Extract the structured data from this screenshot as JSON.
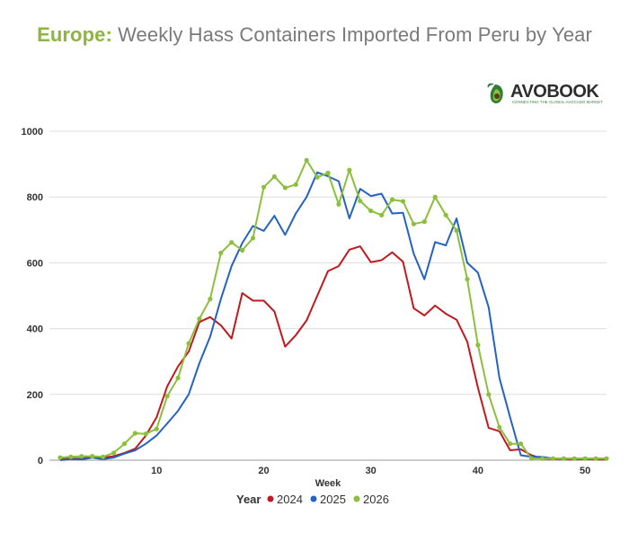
{
  "title": {
    "lead": "Europe:",
    "rest": "Weekly Hass Containers Imported From Peru by Year"
  },
  "logo": {
    "name": "AVOBOOK",
    "tagline": "CONNECTING THE GLOBAL AVOCADO MARKET"
  },
  "chart_data": {
    "type": "line",
    "title": "Europe: Weekly Hass Containers Imported From Peru by Year",
    "xlabel": "Week",
    "ylabel": "",
    "xlim": [
      0,
      52
    ],
    "ylim": [
      0,
      1000
    ],
    "xticks": [
      10,
      20,
      30,
      40,
      50
    ],
    "yticks": [
      0,
      200,
      400,
      600,
      800,
      1000
    ],
    "grid": "horizontal",
    "legend_title": "Year",
    "legend_position": "bottom",
    "series": [
      {
        "name": "2024",
        "color": "#c0191f",
        "markers": false,
        "x": [
          1,
          2,
          3,
          4,
          5,
          6,
          7,
          8,
          9,
          10,
          11,
          12,
          13,
          14,
          15,
          16,
          17,
          18,
          19,
          20,
          21,
          22,
          23,
          24,
          25,
          26,
          27,
          28,
          29,
          30,
          31,
          32,
          33,
          34,
          35,
          36,
          37,
          38,
          39,
          40,
          41,
          42,
          43,
          44,
          45,
          46,
          47,
          48,
          49,
          50,
          51,
          52
        ],
        "values": [
          3,
          5,
          5,
          10,
          8,
          12,
          22,
          35,
          75,
          130,
          225,
          285,
          330,
          420,
          435,
          410,
          370,
          508,
          485,
          485,
          452,
          345,
          380,
          425,
          500,
          575,
          590,
          640,
          650,
          602,
          608,
          632,
          603,
          462,
          440,
          470,
          445,
          427,
          360,
          220,
          98,
          88,
          30,
          33,
          15,
          5,
          3,
          3,
          2,
          3,
          2,
          2
        ]
      },
      {
        "name": "2025",
        "color": "#2463c0",
        "markers": false,
        "x": [
          1,
          2,
          3,
          4,
          5,
          6,
          7,
          8,
          9,
          10,
          11,
          12,
          13,
          14,
          15,
          16,
          17,
          18,
          19,
          20,
          21,
          22,
          23,
          24,
          25,
          26,
          27,
          28,
          29,
          30,
          31,
          32,
          33,
          34,
          35,
          36,
          37,
          38,
          39,
          40,
          41,
          42,
          43,
          44,
          45,
          46,
          47,
          48,
          49,
          50,
          51,
          52
        ],
        "values": [
          0,
          3,
          2,
          8,
          3,
          8,
          20,
          30,
          50,
          75,
          112,
          150,
          200,
          295,
          375,
          490,
          590,
          660,
          712,
          697,
          743,
          685,
          750,
          800,
          875,
          863,
          848,
          735,
          825,
          803,
          810,
          750,
          752,
          628,
          550,
          663,
          653,
          735,
          600,
          570,
          465,
          250,
          130,
          15,
          10,
          10,
          5,
          5,
          5,
          5,
          5,
          5
        ]
      },
      {
        "name": "2026",
        "color": "#8cbf3c",
        "markers": true,
        "x": [
          1,
          2,
          3,
          4,
          5,
          6,
          7,
          8,
          9,
          10,
          11,
          12,
          13,
          14,
          15,
          16,
          17,
          18,
          19,
          20,
          21,
          22,
          23,
          24,
          25,
          26,
          27,
          28,
          29,
          30,
          31,
          32,
          33,
          34,
          35,
          36,
          37,
          38,
          39,
          40,
          41,
          42,
          43,
          44,
          45,
          46,
          47,
          48,
          49,
          50,
          51,
          52
        ],
        "values": [
          8,
          10,
          12,
          12,
          10,
          22,
          50,
          82,
          80,
          95,
          195,
          250,
          355,
          430,
          490,
          630,
          662,
          638,
          675,
          830,
          862,
          828,
          838,
          912,
          860,
          873,
          778,
          882,
          788,
          758,
          745,
          792,
          787,
          718,
          725,
          800,
          745,
          698,
          550,
          350,
          200,
          100,
          50,
          50,
          5,
          5,
          5,
          5,
          5,
          5,
          5,
          5
        ]
      }
    ]
  }
}
